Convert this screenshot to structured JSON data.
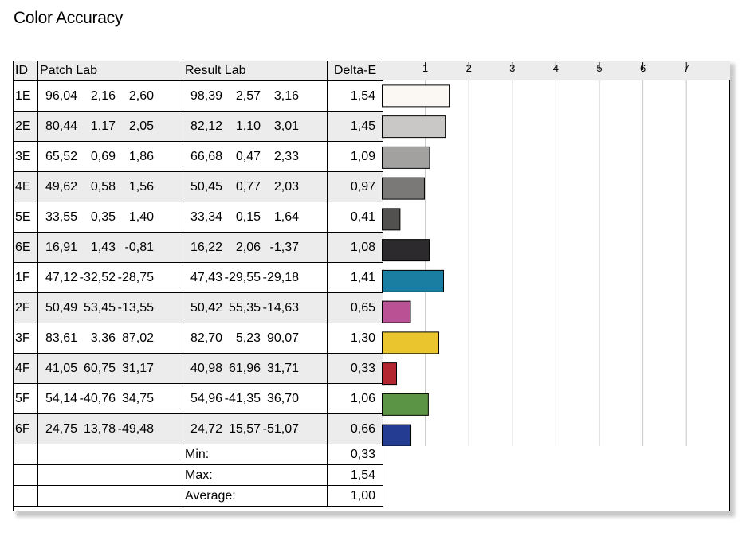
{
  "title": "Color Accuracy",
  "headers": {
    "id": "ID",
    "patch": "Patch Lab",
    "result": "Result Lab",
    "delta": "Delta-E"
  },
  "rows": [
    {
      "id": "1E",
      "patch": [
        "96,04",
        "2,16",
        "2,60"
      ],
      "result": [
        "98,39",
        "2,57",
        "3,16"
      ],
      "delta": "1,54",
      "color": "#fbf8f4"
    },
    {
      "id": "2E",
      "patch": [
        "80,44",
        "1,17",
        "2,05"
      ],
      "result": [
        "82,12",
        "1,10",
        "3,01"
      ],
      "delta": "1,45",
      "color": "#c9c8c6"
    },
    {
      "id": "3E",
      "patch": [
        "65,52",
        "0,69",
        "1,86"
      ],
      "result": [
        "66,68",
        "0,47",
        "2,33"
      ],
      "delta": "1,09",
      "color": "#a2a19f"
    },
    {
      "id": "4E",
      "patch": [
        "49,62",
        "0,58",
        "1,56"
      ],
      "result": [
        "50,45",
        "0,77",
        "2,03"
      ],
      "delta": "0,97",
      "color": "#7a7977"
    },
    {
      "id": "5E",
      "patch": [
        "33,55",
        "0,35",
        "1,40"
      ],
      "result": [
        "33,34",
        "0,15",
        "1,64"
      ],
      "delta": "0,41",
      "color": "#525150"
    },
    {
      "id": "6E",
      "patch": [
        "16,91",
        "1,43",
        "-0,81"
      ],
      "result": [
        "16,22",
        "2,06",
        "-1,37"
      ],
      "delta": "1,08",
      "color": "#2c2a2c"
    },
    {
      "id": "1F",
      "patch": [
        "47,12",
        "-32,52",
        "-28,75"
      ],
      "result": [
        "47,43",
        "-29,55",
        "-29,18"
      ],
      "delta": "1,41",
      "color": "#1a7ea3"
    },
    {
      "id": "2F",
      "patch": [
        "50,49",
        "53,45",
        "-13,55"
      ],
      "result": [
        "50,42",
        "55,35",
        "-14,63"
      ],
      "delta": "0,65",
      "color": "#bb5195"
    },
    {
      "id": "3F",
      "patch": [
        "83,61",
        "3,36",
        "87,02"
      ],
      "result": [
        "82,70",
        "5,23",
        "90,07"
      ],
      "delta": "1,30",
      "color": "#ebc52e"
    },
    {
      "id": "4F",
      "patch": [
        "41,05",
        "60,75",
        "31,17"
      ],
      "result": [
        "40,98",
        "61,96",
        "31,71"
      ],
      "delta": "0,33",
      "color": "#b4262f"
    },
    {
      "id": "5F",
      "patch": [
        "54,14",
        "-40,76",
        "34,75"
      ],
      "result": [
        "54,96",
        "-41,35",
        "36,70"
      ],
      "delta": "1,06",
      "color": "#5a9444"
    },
    {
      "id": "6F",
      "patch": [
        "24,75",
        "13,78",
        "-49,48"
      ],
      "result": [
        "24,72",
        "15,57",
        "-51,07"
      ],
      "delta": "0,66",
      "color": "#243d92"
    }
  ],
  "stats": [
    {
      "label": "Min:",
      "value": "0,33"
    },
    {
      "label": "Max:",
      "value": "1,54"
    },
    {
      "label": "Average:",
      "value": "1,00"
    }
  ],
  "chart_data": {
    "type": "bar",
    "orientation": "horizontal",
    "categories": [
      "1E",
      "2E",
      "3E",
      "4E",
      "5E",
      "6E",
      "1F",
      "2F",
      "3F",
      "4F",
      "5F",
      "6F"
    ],
    "values": [
      1.54,
      1.45,
      1.09,
      0.97,
      0.41,
      1.08,
      1.41,
      0.65,
      1.3,
      0.33,
      1.06,
      0.66
    ],
    "xticks": [
      "1",
      "2",
      "3",
      "4",
      "5",
      "6",
      "7"
    ],
    "xlim": [
      0,
      7.7
    ],
    "grid": true,
    "legend": "none",
    "colors": [
      "#fbf8f4",
      "#c9c8c6",
      "#a2a19f",
      "#7a7977",
      "#525150",
      "#2c2a2c",
      "#1a7ea3",
      "#bb5195",
      "#ebc52e",
      "#b4262f",
      "#5a9444",
      "#243d92"
    ]
  }
}
